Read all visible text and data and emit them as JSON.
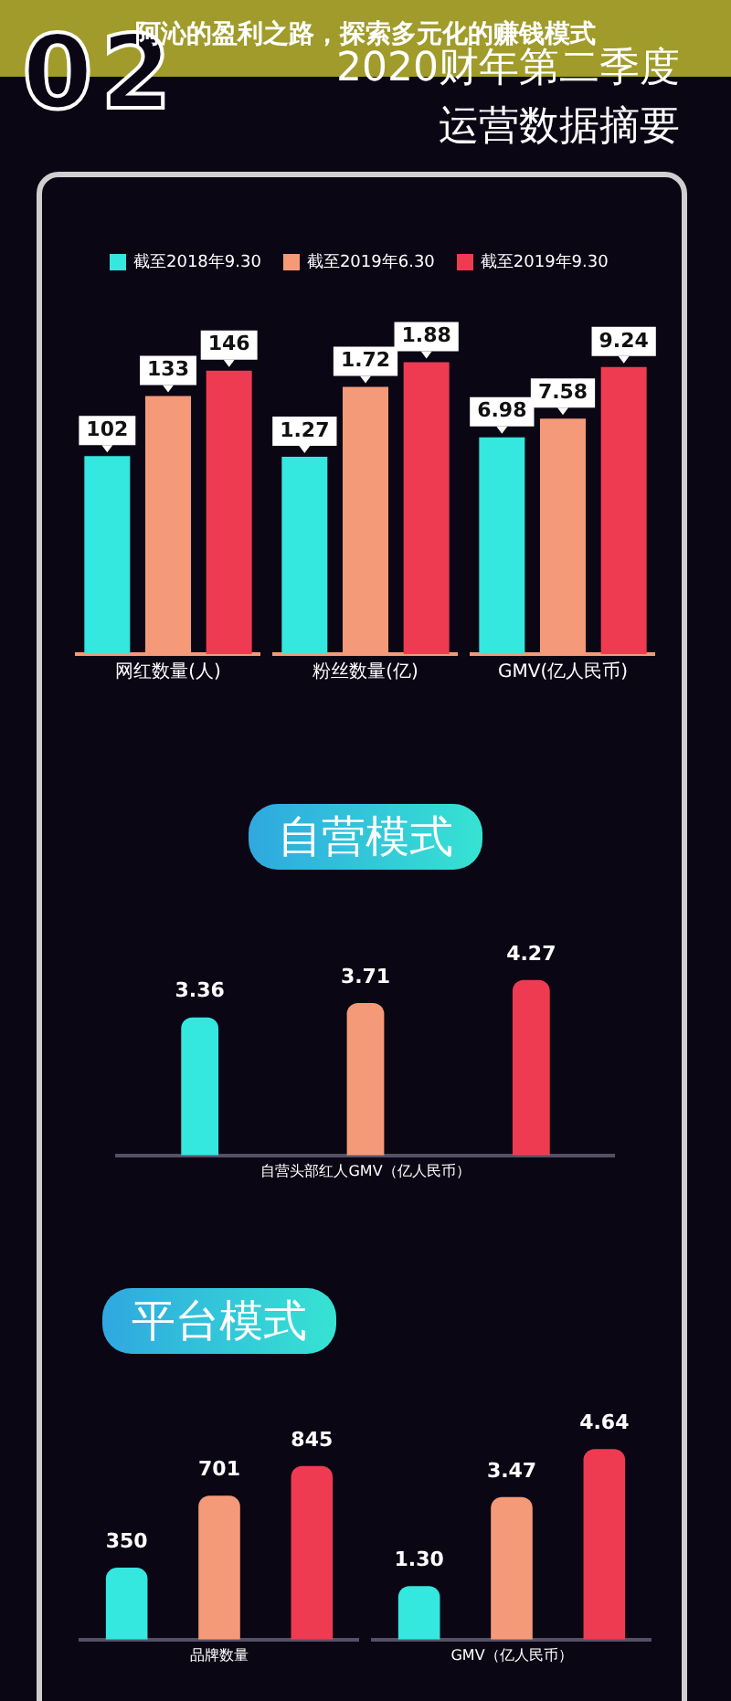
{
  "chart_data": [
    {
      "type": "other",
      "title": "阿沁的盈利之路，探索多元化的赚钱模式",
      "annotations": [
        "02",
        "2020财年第二季度",
        "运营数据摘要",
        "截至2018年9.30",
        "截至2019年6.30",
        "截至2019年9.30"
      ],
      "colors": [
        "#34e7df",
        "#f59a78",
        "#ef3b52"
      ]
    },
    {
      "type": "bar",
      "xlabel": "网红数量(人)",
      "categories": [
        null,
        null,
        null
      ],
      "data_labels": true,
      "tick_labels": false,
      "values": [
        102,
        133,
        146
      ],
      "colors": [
        "#34e7df",
        "#f59a78",
        "#ef3b52"
      ]
    },
    {
      "type": "bar",
      "xlabel": "粉丝数量(亿)",
      "categories": [
        null,
        null,
        null
      ],
      "data_labels": true,
      "tick_labels": false,
      "values": [
        1.27,
        1.72,
        1.88
      ],
      "colors": [
        "#34e7df",
        "#f59a78",
        "#ef3b52"
      ]
    },
    {
      "type": "bar",
      "xlabel": "GMV(亿人民币)",
      "categories": [
        null,
        null,
        null
      ],
      "data_labels": true,
      "tick_labels": false,
      "values": [
        6.98,
        7.58,
        9.24
      ],
      "colors": [
        "#34e7df",
        "#f59a78",
        "#ef3b52"
      ]
    },
    {
      "type": "bar",
      "title": "自营模式",
      "xlabel": "自营头部红人GMV（亿人民币）",
      "categories": [
        null,
        null,
        null
      ],
      "data_labels": true,
      "tick_labels": false,
      "values": [
        3.36,
        3.71,
        4.27
      ],
      "colors": [
        "#34e7df",
        "#f59a78",
        "#ef3b52"
      ]
    },
    {
      "type": "bar",
      "title": "平台模式",
      "xlabel": "品牌数量",
      "categories": [
        null,
        null,
        null
      ],
      "data_labels": true,
      "tick_labels": false,
      "values": [
        350,
        701,
        845
      ],
      "colors": [
        "#34e7df",
        "#f59a78",
        "#ef3b52"
      ]
    },
    {
      "type": "bar",
      "xlabel": "GMV（亿人民币）",
      "categories": [
        null,
        null,
        null
      ],
      "tick_labels": false,
      "values": [
        1.3,
        3.47,
        4.64
      ],
      "value_labels": [
        "1.30",
        "3.47",
        "4.64"
      ],
      "colors": [
        "#34e7df",
        "#f59a78",
        "#ef3b52"
      ]
    }
  ]
}
